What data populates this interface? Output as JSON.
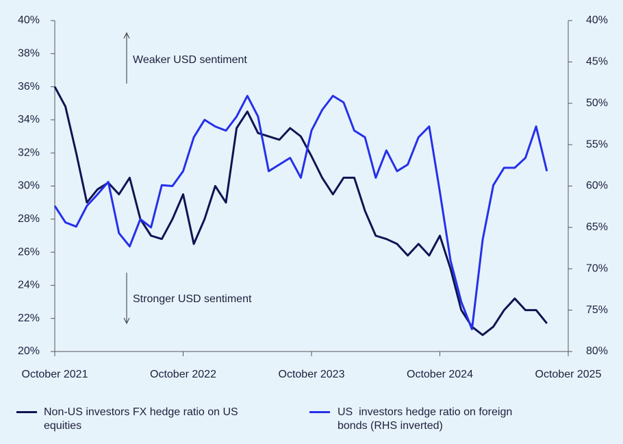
{
  "chart_data": {
    "type": "line",
    "x": [
      "2021-10",
      "2021-11",
      "2021-12",
      "2022-01",
      "2022-02",
      "2022-03",
      "2022-04",
      "2022-05",
      "2022-06",
      "2022-07",
      "2022-08",
      "2022-09",
      "2022-10",
      "2022-11",
      "2022-12",
      "2023-01",
      "2023-02",
      "2023-03",
      "2023-04",
      "2023-05",
      "2023-06",
      "2023-07",
      "2023-08",
      "2023-09",
      "2023-10",
      "2023-11",
      "2023-12",
      "2024-01",
      "2024-02",
      "2024-03",
      "2024-04",
      "2024-05",
      "2024-06",
      "2024-07",
      "2024-08",
      "2024-09",
      "2024-10",
      "2024-11",
      "2024-12",
      "2025-01",
      "2025-02",
      "2025-03",
      "2025-04",
      "2025-05",
      "2025-06",
      "2025-07",
      "2025-08"
    ],
    "xlim": [
      "2021-10",
      "2025-10"
    ],
    "xticks": [
      {
        "value": "2021-10",
        "label": "October 2021"
      },
      {
        "value": "2022-10",
        "label": "October 2022"
      },
      {
        "value": "2023-10",
        "label": "October 2023"
      },
      {
        "value": "2024-10",
        "label": "October 2024"
      },
      {
        "value": "2025-10",
        "label": "October 2025"
      }
    ],
    "series": [
      {
        "name": "Non-US investors FX hedge ratio on US equities",
        "color": "#0f1452",
        "values": [
          36,
          34.8,
          32,
          29,
          29.8,
          30.2,
          29.5,
          30.5,
          28,
          27,
          26.8,
          28,
          29.5,
          26.5,
          28,
          30,
          29,
          33.5,
          34.5,
          33.2,
          33,
          32.8,
          33.5,
          33,
          31.8,
          30.5,
          29.5,
          30.5,
          30.5,
          28.5,
          27,
          26.8,
          26.5,
          25.8,
          26.5,
          25.8,
          27,
          25,
          22.5,
          21.5,
          21,
          21.5,
          22.5,
          23.2,
          22.5,
          22.5,
          21.7
        ]
      },
      {
        "name": "US  investors hedge ratio on foreign bonds (RHS inverted)",
        "color": "#2530ea",
        "axis": "y2",
        "values": [
          62.4,
          64.4,
          64.9,
          62.4,
          61,
          59.5,
          65.7,
          67.3,
          64,
          65,
          59.9,
          60,
          58.2,
          54.1,
          52,
          52.8,
          53.3,
          51.6,
          49.1,
          51.6,
          58.2,
          57.4,
          56.6,
          59,
          53.3,
          50.8,
          49.1,
          49.9,
          53.3,
          54.1,
          59,
          55.7,
          58.2,
          57.4,
          54.1,
          52.8,
          60.7,
          69,
          74,
          77.3,
          66.5,
          59.9,
          57.8,
          57.8,
          56.6,
          52.8,
          58.2
        ]
      }
    ],
    "ylim": [
      20,
      40
    ],
    "yticks": [
      {
        "value": 20,
        "label": "20%"
      },
      {
        "value": 22,
        "label": "22%"
      },
      {
        "value": 24,
        "label": "24%"
      },
      {
        "value": 26,
        "label": "26%"
      },
      {
        "value": 28,
        "label": "28%"
      },
      {
        "value": 30,
        "label": "30%"
      },
      {
        "value": 32,
        "label": "32%"
      },
      {
        "value": 34,
        "label": "34%"
      },
      {
        "value": 36,
        "label": "36%"
      },
      {
        "value": 38,
        "label": "38%"
      },
      {
        "value": 40,
        "label": "40%"
      }
    ],
    "y2lim": [
      80,
      40
    ],
    "y2ticks": [
      {
        "value": 40,
        "label": "40%"
      },
      {
        "value": 45,
        "label": "45%"
      },
      {
        "value": 50,
        "label": "50%"
      },
      {
        "value": 55,
        "label": "55%"
      },
      {
        "value": 60,
        "label": "60%"
      },
      {
        "value": 65,
        "label": "65%"
      },
      {
        "value": 70,
        "label": "70%"
      },
      {
        "value": 75,
        "label": "75%"
      },
      {
        "value": 80,
        "label": "80%"
      }
    ],
    "annotations": [
      "Weaker USD sentiment",
      "Stronger USD sentiment"
    ]
  }
}
